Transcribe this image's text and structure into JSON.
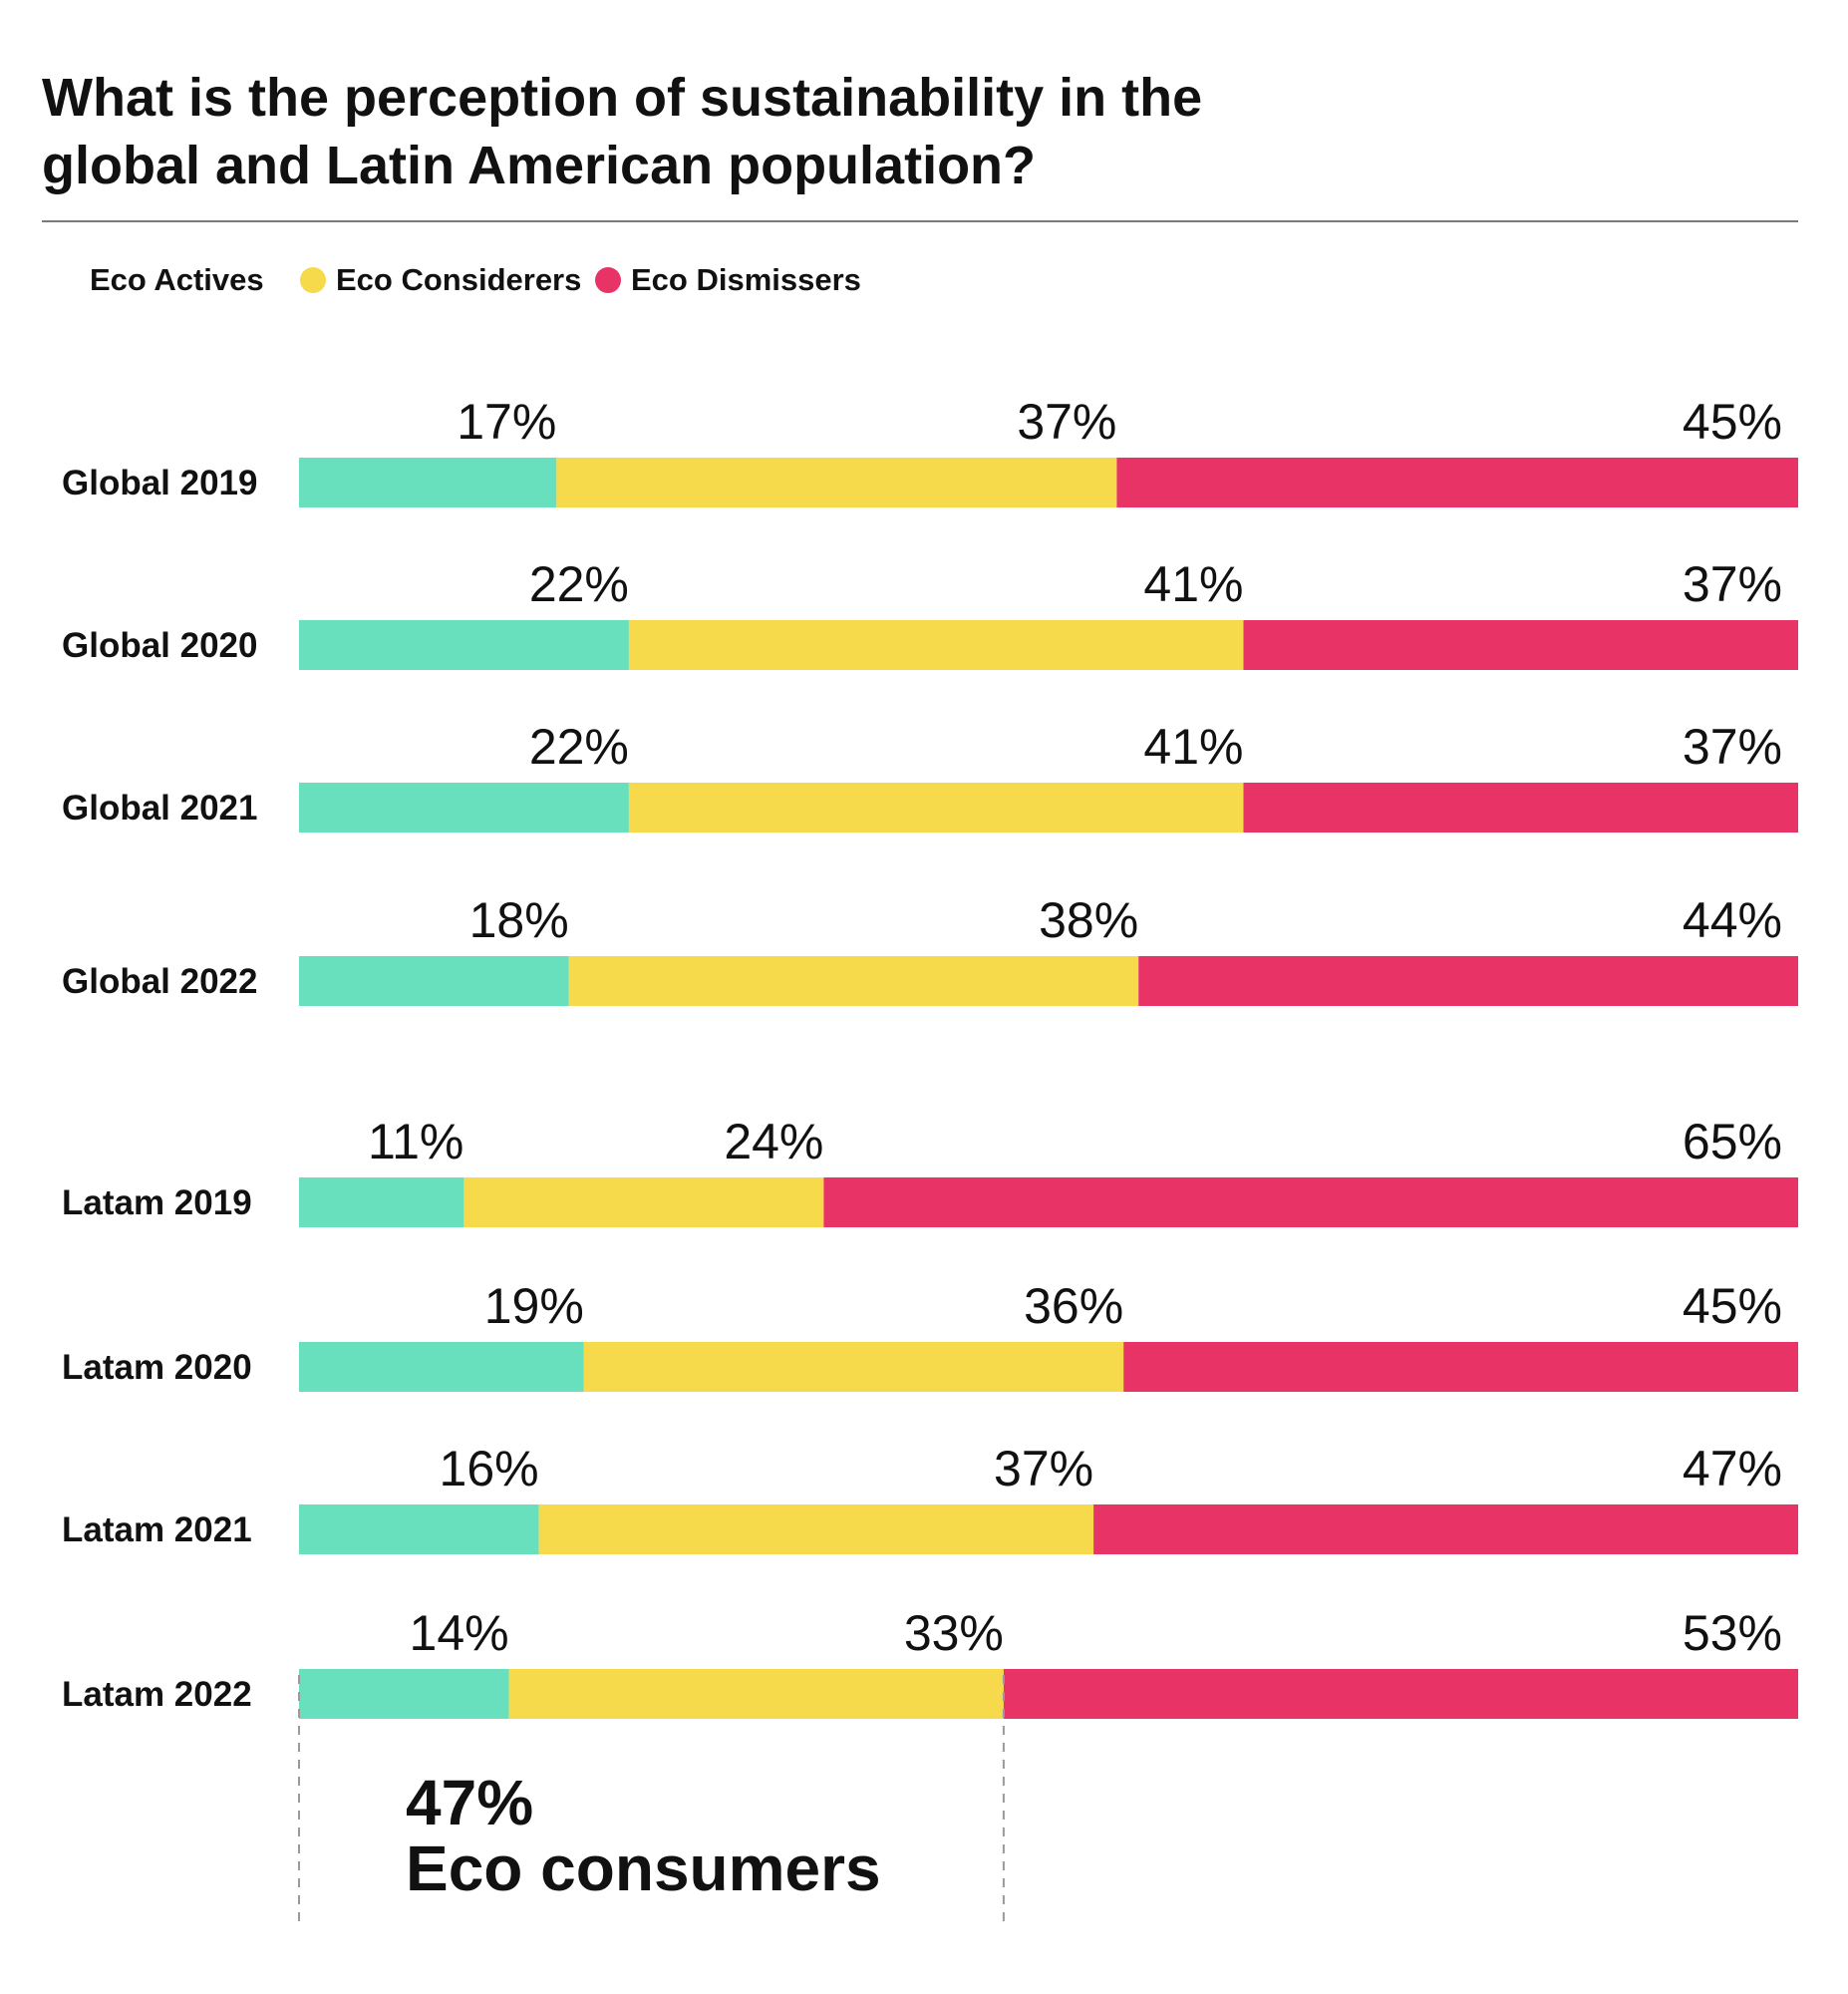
{
  "chart_data": {
    "type": "bar",
    "stacked": true,
    "orientation": "horizontal",
    "normalized": true,
    "title": "What is the perception of sustainability in the global and Latin American population?",
    "title_lines": [
      "What is the perception of sustainability in the",
      "global and Latin American population?"
    ],
    "categories": [
      "Global 2019",
      "Global 2020",
      "Global 2021",
      "Global 2022",
      "Latam 2019",
      "Latam 2020",
      "Latam 2021",
      "Latam 2022"
    ],
    "groups": [
      [
        "Global 2019",
        "Global 2020",
        "Global 2021",
        "Global 2022"
      ],
      [
        "Latam 2019",
        "Latam 2020",
        "Latam 2021",
        "Latam 2022"
      ]
    ],
    "series": [
      {
        "name": "Eco Actives",
        "color": "#68e0bd",
        "values": [
          17,
          22,
          22,
          18,
          11,
          19,
          16,
          14
        ],
        "labels": [
          "17%",
          "22%",
          "22%",
          "18%",
          "11%",
          "19%",
          "16%",
          "14%"
        ]
      },
      {
        "name": "Eco Considerers",
        "color": "#f6da4c",
        "values": [
          37,
          41,
          41,
          38,
          24,
          36,
          37,
          33
        ],
        "labels": [
          "37%",
          "41%",
          "41%",
          "38%",
          "24%",
          "36%",
          "37%",
          "33%"
        ]
      },
      {
        "name": "Eco Dismissers",
        "color": "#e83366",
        "values": [
          45,
          37,
          37,
          44,
          65,
          45,
          47,
          53
        ],
        "labels": [
          "45%",
          "37%",
          "37%",
          "44%",
          "65%",
          "45%",
          "47%",
          "53%"
        ]
      }
    ],
    "legend": {
      "position": "top-left",
      "entries": [
        {
          "name": "Eco Actives",
          "marker": false
        },
        {
          "name": "Eco Considerers",
          "marker": true,
          "color": "#f6da4c"
        },
        {
          "name": "Eco Dismissers",
          "marker": true,
          "color": "#e83366"
        }
      ]
    },
    "grid": false,
    "xlim": [
      0,
      100
    ],
    "annotation": {
      "category": "Latam 2022",
      "value": "47%",
      "text": "Eco consumers",
      "spans_series": [
        "Eco Actives",
        "Eco Considerers"
      ]
    }
  },
  "colors": {
    "text": "#111111",
    "divider": "#7a7a7a",
    "bracket": "#9a9a9a"
  }
}
